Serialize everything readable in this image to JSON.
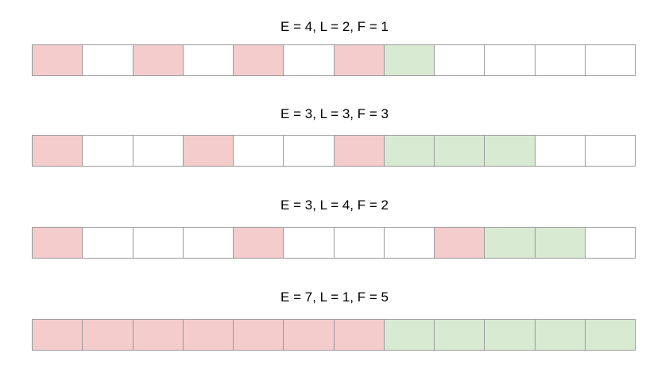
{
  "colors": {
    "red": "#f4cccc",
    "green": "#d9ead3",
    "white": "#ffffff",
    "border": "#999999"
  },
  "rows": [
    {
      "label": "E = 4, L = 2, F = 1",
      "cells": [
        "red",
        "white",
        "red",
        "white",
        "red",
        "white",
        "red",
        "green",
        "white",
        "white",
        "white",
        "white"
      ]
    },
    {
      "label": "E = 3, L = 3, F = 3",
      "cells": [
        "red",
        "white",
        "white",
        "red",
        "white",
        "white",
        "red",
        "green",
        "green",
        "green",
        "white",
        "white"
      ]
    },
    {
      "label": "E = 3, L = 4, F = 2",
      "cells": [
        "red",
        "white",
        "white",
        "white",
        "red",
        "white",
        "white",
        "white",
        "red",
        "green",
        "green",
        "white"
      ]
    },
    {
      "label": "E = 7, L = 1, F = 5",
      "cells": [
        "red",
        "red",
        "red",
        "red",
        "red",
        "red",
        "red",
        "green",
        "green",
        "green",
        "green",
        "green"
      ]
    }
  ]
}
